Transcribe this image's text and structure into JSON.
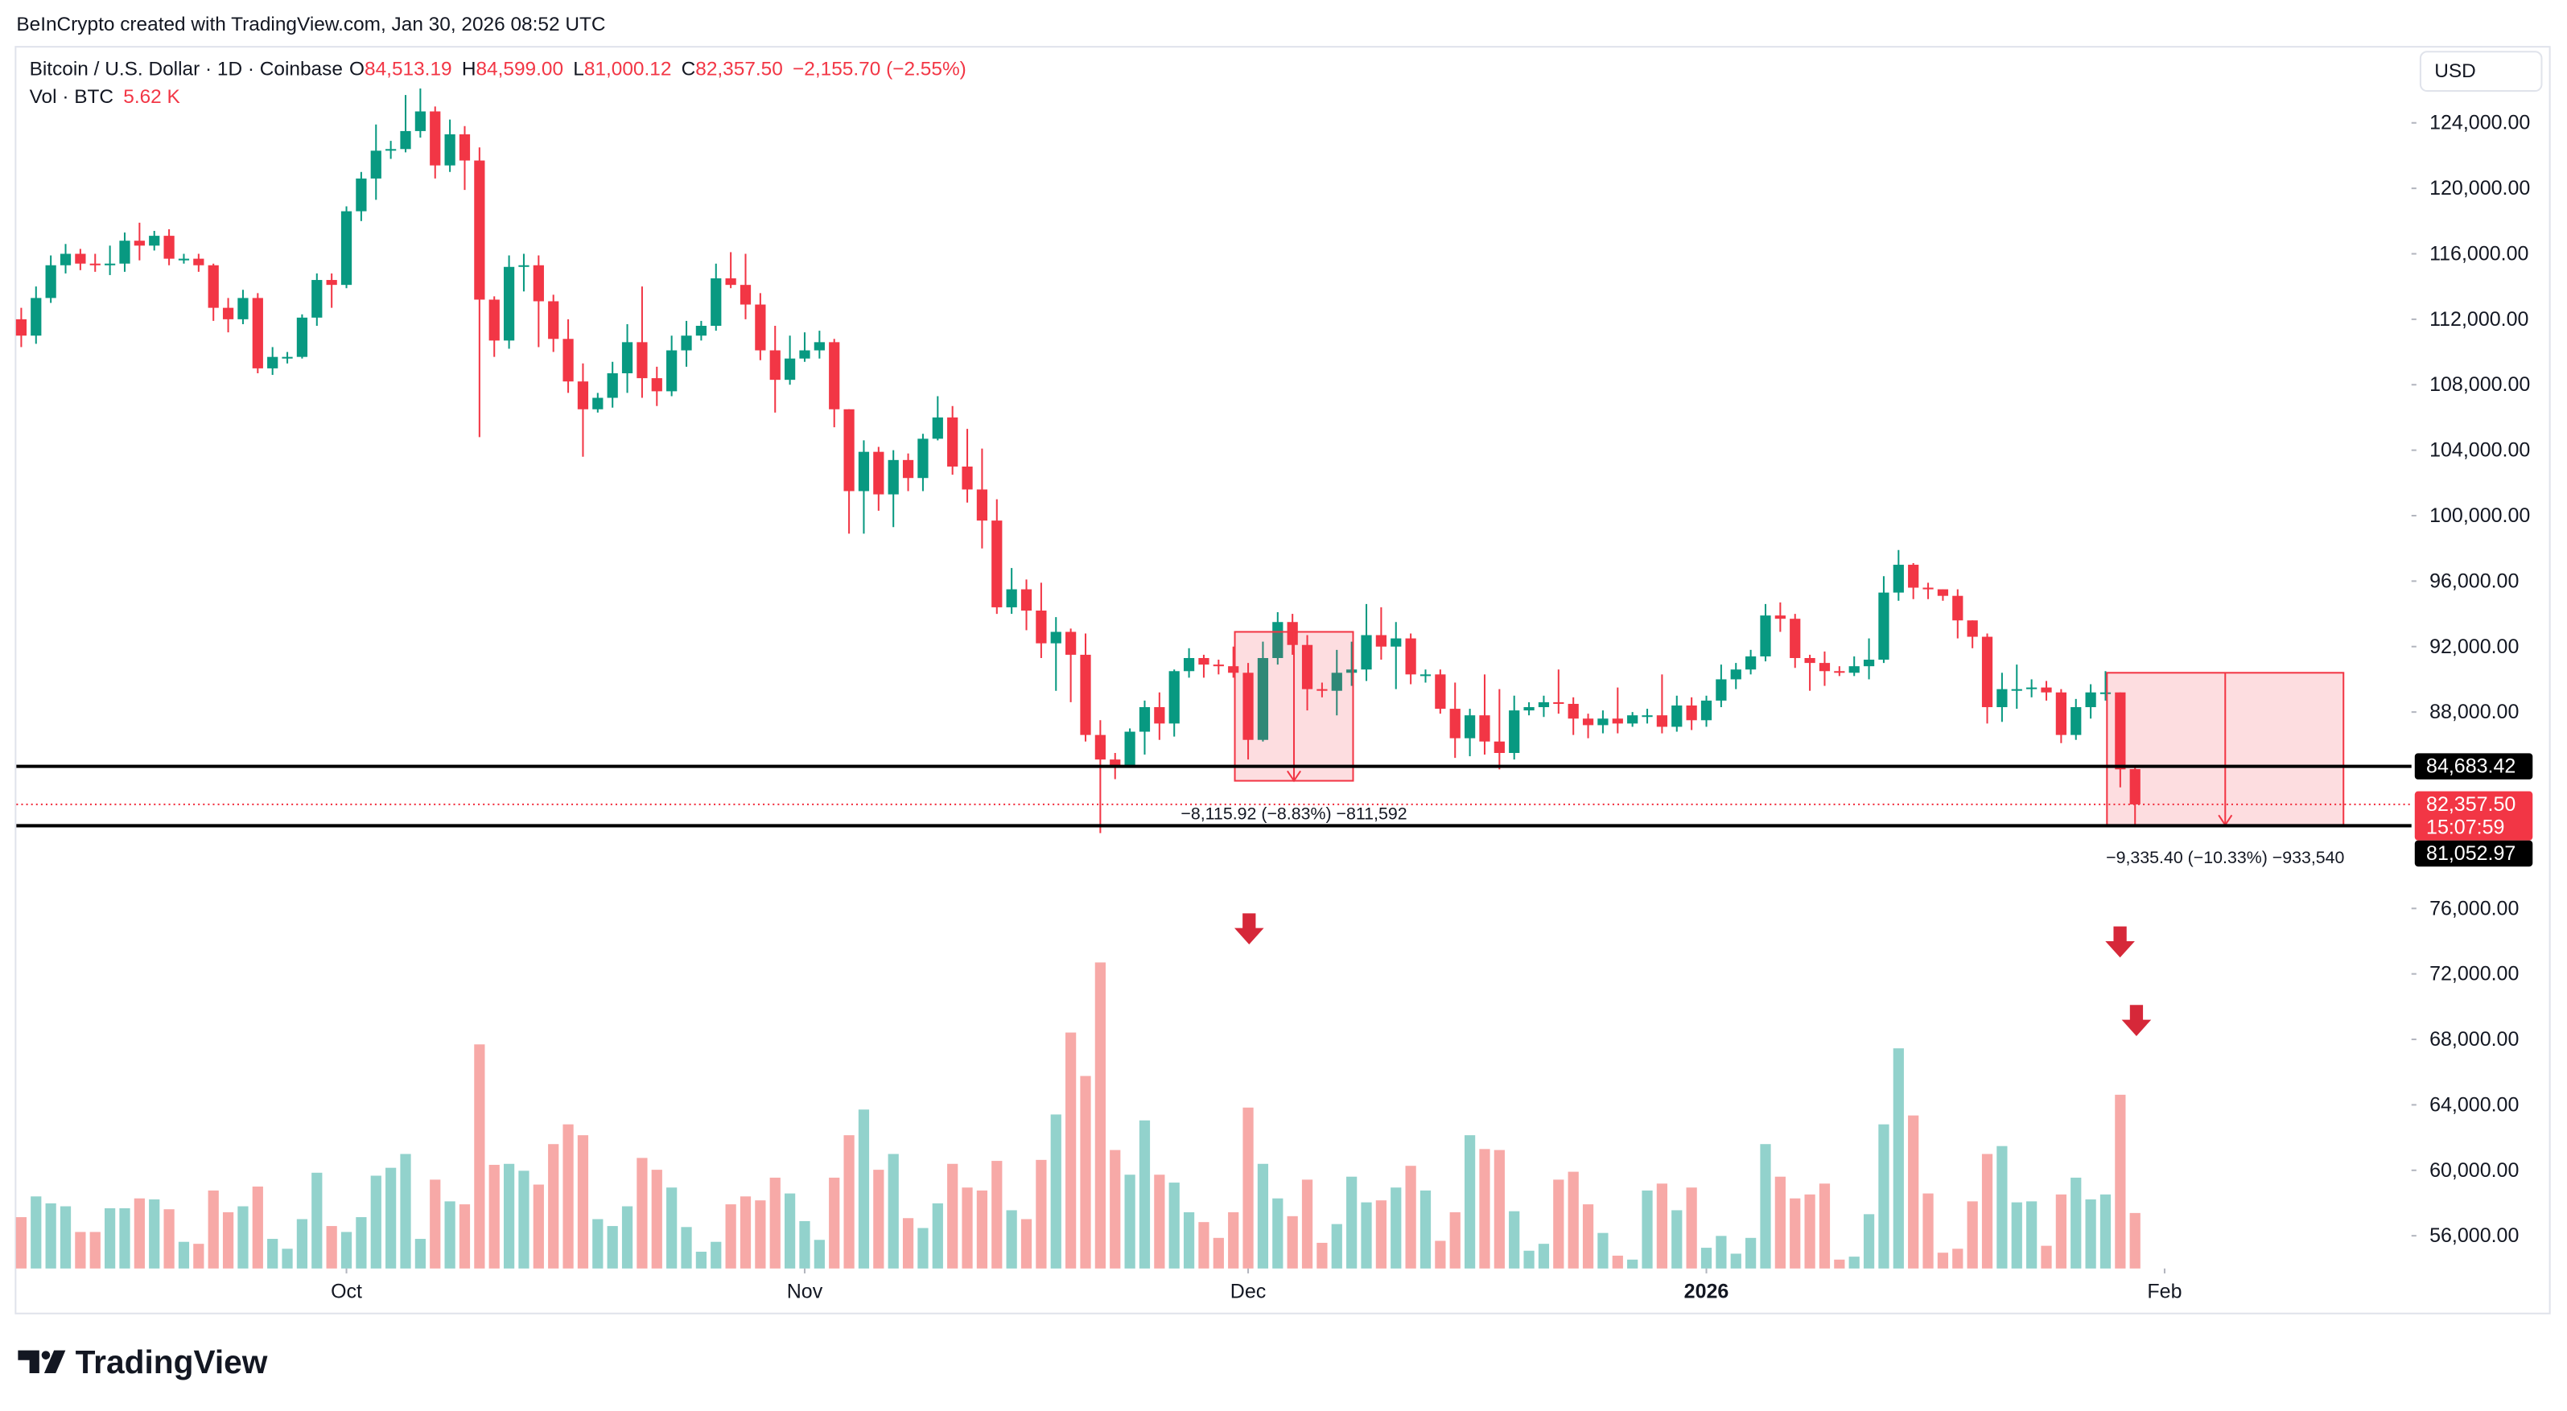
{
  "header": "BeInCrypto created with TradingView.com, Jan 30, 2026 08:52 UTC",
  "footer": "TradingView",
  "currency_button": "USD",
  "chart_data": {
    "type": "candlestick",
    "legend": {
      "symbol": "Bitcoin / U.S. Dollar · 1D · Coinbase",
      "ohlc": [
        {
          "key": "O",
          "value": "84,513.19"
        },
        {
          "key": "H",
          "value": "84,599.00"
        },
        {
          "key": "L",
          "value": "81,000.12"
        },
        {
          "key": "C",
          "value": "82,357.50"
        }
      ],
      "change": "−2,155.70 (−2.55%)",
      "volume_name": "Vol · BTC",
      "volume_value": "5.62 K"
    },
    "up_color": "#089981",
    "down_color": "#f23645",
    "volume_up_color": "#92d2cc",
    "volume_down_color": "#f7a9a7",
    "xlim": [
      -0.33,
      161.7
    ],
    "xticks": [
      {
        "value": 22,
        "label": "Oct"
      },
      {
        "value": 53,
        "label": "Nov"
      },
      {
        "value": 83,
        "label": "Dec"
      },
      {
        "value": 114,
        "label": "2026"
      },
      {
        "value": 145,
        "label": "Feb"
      }
    ],
    "ylim": [
      54000,
      128500
    ],
    "yticks": [
      {
        "value": 56000,
        "label": "56,000.00"
      },
      {
        "value": 60000,
        "label": "60,000.00"
      },
      {
        "value": 64000,
        "label": "64,000.00"
      },
      {
        "value": 68000,
        "label": "68,000.00"
      },
      {
        "value": 72000,
        "label": "72,000.00"
      },
      {
        "value": 76000,
        "label": "76,000.00"
      },
      {
        "value": 88000,
        "label": "88,000.00"
      },
      {
        "value": 92000,
        "label": "92,000.00"
      },
      {
        "value": 96000,
        "label": "96,000.00"
      },
      {
        "value": 100000,
        "label": "100,000.00"
      },
      {
        "value": 104000,
        "label": "104,000.00"
      },
      {
        "value": 108000,
        "label": "108,000.00"
      },
      {
        "value": 112000,
        "label": "112,000.00"
      },
      {
        "value": 116000,
        "label": "116,000.00"
      },
      {
        "value": 120000,
        "label": "120,000.00"
      },
      {
        "value": 124000,
        "label": "124,000.00"
      }
    ],
    "grid": false,
    "open": [
      112000,
      111000,
      113300,
      115300,
      116000,
      115400,
      115300,
      115400,
      116800,
      116500,
      117100,
      115700,
      115700,
      115300,
      112700,
      112000,
      113300,
      109000,
      109700,
      109700,
      112100,
      114400,
      114100,
      118600,
      120600,
      122300,
      122400,
      123500,
      124700,
      121400,
      123300,
      121700,
      113200,
      110700,
      115200,
      115300,
      113100,
      110800,
      108200,
      106500,
      107200,
      108700,
      110600,
      108400,
      107600,
      110100,
      111000,
      111600,
      114500,
      114100,
      112900,
      110100,
      108300,
      109600,
      110100,
      110600,
      106500,
      101500,
      103900,
      101300,
      103400,
      102300,
      104700,
      106000,
      103000,
      101600,
      99700,
      94400,
      95500,
      94200,
      92200,
      92900,
      91500,
      86600,
      85100,
      84700,
      86800,
      88300,
      87300,
      90500,
      91300,
      90900,
      90800,
      90400,
      86300,
      91300,
      93500,
      92100,
      89400,
      89300,
      90400,
      90600,
      92700,
      92000,
      92500,
      90300,
      90300,
      88200,
      86400,
      87800,
      86200,
      85500,
      88100,
      88300,
      88600,
      88500,
      87600,
      87200,
      87600,
      87300,
      87800,
      87800,
      87100,
      88400,
      87500,
      88700,
      90000,
      90600,
      91400,
      93900,
      93700,
      91300,
      91000,
      90500,
      90400,
      90800,
      91200,
      95300,
      97000,
      95600,
      95500,
      95100,
      93600,
      92600,
      88300,
      89400,
      89400,
      89500,
      89200,
      86600,
      88300,
      89200,
      89200,
      84513.19
    ],
    "high": [
      112700,
      114000,
      115900,
      116600,
      116300,
      116000,
      116500,
      117300,
      117900,
      117400,
      117500,
      116000,
      116000,
      115400,
      113300,
      113800,
      113600,
      110300,
      110000,
      112300,
      114800,
      114800,
      118900,
      121000,
      123900,
      122900,
      125700,
      126100,
      125000,
      124200,
      123800,
      122500,
      113400,
      115900,
      116000,
      115900,
      113500,
      112000,
      109300,
      107500,
      109400,
      111700,
      114000,
      109100,
      111000,
      111900,
      111900,
      115400,
      116100,
      116000,
      113600,
      111600,
      111000,
      111200,
      111300,
      110800,
      106500,
      104600,
      104200,
      104000,
      103800,
      105000,
      107300,
      106700,
      105300,
      104100,
      101000,
      96800,
      96100,
      95900,
      93800,
      93100,
      92800,
      87500,
      85500,
      87000,
      88700,
      89200,
      90600,
      91900,
      91500,
      91200,
      92000,
      91000,
      92300,
      94100,
      94000,
      92700,
      89800,
      91800,
      92300,
      94600,
      94400,
      93500,
      92800,
      90600,
      90600,
      89800,
      88200,
      90300,
      89400,
      89000,
      88600,
      89000,
      90600,
      88900,
      87900,
      88100,
      89500,
      88000,
      88200,
      90300,
      89000,
      88900,
      89000,
      90900,
      91000,
      91800,
      94600,
      94700,
      94000,
      91500,
      91700,
      90800,
      91400,
      92500,
      96300,
      97900,
      97100,
      95900,
      95500,
      95500,
      93600,
      92800,
      90400,
      90900,
      90000,
      89900,
      89400,
      88800,
      89700,
      90500,
      89200,
      84599
    ],
    "low": [
      110300,
      110500,
      113000,
      114800,
      115000,
      114900,
      114700,
      114900,
      115600,
      116200,
      115300,
      115400,
      114900,
      111900,
      111200,
      111700,
      108700,
      108600,
      109300,
      109600,
      111600,
      112700,
      113900,
      118000,
      119300,
      121800,
      122200,
      123100,
      120600,
      121000,
      119900,
      104800,
      109700,
      110200,
      113700,
      110300,
      110000,
      107500,
      103600,
      106300,
      106600,
      107500,
      107200,
      106700,
      107300,
      109100,
      110700,
      111300,
      113900,
      112000,
      109500,
      106300,
      108000,
      109400,
      109600,
      105400,
      98900,
      98900,
      100300,
      99300,
      101500,
      101500,
      104600,
      102500,
      100800,
      98000,
      94000,
      94000,
      93000,
      91300,
      89300,
      88600,
      86200,
      80600,
      83900,
      84600,
      85400,
      86300,
      86500,
      90100,
      90100,
      90300,
      90100,
      85100,
      86200,
      90900,
      91500,
      88100,
      88900,
      87800,
      89600,
      89900,
      91200,
      89400,
      89700,
      89800,
      87900,
      85200,
      85300,
      85400,
      84500,
      85100,
      87800,
      87700,
      87900,
      86600,
      86400,
      86700,
      86700,
      87100,
      87300,
      86700,
      86800,
      86900,
      87100,
      88300,
      89400,
      90300,
      91100,
      92900,
      90700,
      89300,
      89600,
      90200,
      90200,
      90000,
      91000,
      94800,
      94900,
      94900,
      94800,
      92500,
      91900,
      87300,
      87400,
      88200,
      88900,
      88700,
      86100,
      86300,
      87600,
      88700,
      83400,
      81000.12
    ],
    "close": [
      111000,
      113300,
      115300,
      116000,
      115400,
      115300,
      115400,
      116800,
      116500,
      117100,
      115700,
      115700,
      115300,
      112700,
      112000,
      113300,
      109000,
      109700,
      109700,
      112100,
      114400,
      114100,
      118600,
      120600,
      122300,
      122400,
      123500,
      124700,
      121400,
      123300,
      121700,
      113200,
      110700,
      115200,
      115300,
      113100,
      110800,
      108200,
      106500,
      107200,
      108700,
      110600,
      108400,
      107600,
      110100,
      111000,
      111600,
      114500,
      114100,
      112900,
      110100,
      108300,
      109600,
      110100,
      110600,
      106500,
      101500,
      103900,
      101300,
      103400,
      102300,
      104700,
      106000,
      103000,
      101600,
      99700,
      94400,
      95500,
      94200,
      92200,
      92900,
      91500,
      86600,
      85100,
      84700,
      86800,
      88300,
      87300,
      90500,
      91300,
      90900,
      90800,
      90400,
      86300,
      91300,
      93500,
      92100,
      89400,
      89300,
      90400,
      90600,
      92700,
      92000,
      92500,
      90300,
      90300,
      88200,
      86400,
      87800,
      86200,
      85500,
      88100,
      88300,
      88600,
      88500,
      87600,
      87200,
      87600,
      87300,
      87800,
      87800,
      87100,
      88400,
      87500,
      88700,
      90000,
      90600,
      91400,
      93900,
      93700,
      91300,
      91000,
      90500,
      90400,
      90800,
      91200,
      95300,
      97000,
      95600,
      95500,
      95100,
      93600,
      92600,
      88300,
      89400,
      89400,
      89500,
      89200,
      86600,
      88300,
      89200,
      89200,
      84500,
      82357.5
    ],
    "volume": [
      5200,
      7300,
      6600,
      6300,
      3700,
      3700,
      6100,
      6100,
      7100,
      7000,
      6000,
      2700,
      2500,
      7900,
      5700,
      6300,
      8300,
      3000,
      2000,
      5000,
      9700,
      4300,
      3700,
      5200,
      9400,
      10200,
      11600,
      3000,
      9000,
      6800,
      6500,
      22700,
      10500,
      10600,
      9900,
      8500,
      12600,
      14600,
      13500,
      5000,
      4300,
      6300,
      11200,
      10000,
      8200,
      4200,
      1700,
      2700,
      6500,
      7300,
      6900,
      9200,
      7600,
      4800,
      2900,
      9200,
      13500,
      16100,
      10000,
      11600,
      5100,
      4100,
      6600,
      10600,
      8200,
      7900,
      10900,
      5900,
      5000,
      11000,
      15600,
      23900,
      19500,
      31000,
      12000,
      9500,
      15000,
      9500,
      8700,
      5700,
      4700,
      3100,
      5700,
      16300,
      10600,
      7100,
      5300,
      9000,
      2600,
      4500,
      9300,
      6700,
      6900,
      8200,
      10400,
      7900,
      2800,
      5700,
      13500,
      12100,
      12000,
      5800,
      1800,
      2500,
      9000,
      9800,
      6500,
      3600,
      1300,
      900,
      7900,
      8600,
      5900,
      8200,
      2100,
      3300,
      1500,
      3100,
      12600,
      9300,
      7100,
      7500,
      8600,
      900,
      1200,
      5500,
      14600,
      22300,
      15500,
      7600,
      1600,
      2000,
      6800,
      11600,
      12400,
      6700,
      6800,
      2300,
      7500,
      9200,
      7000,
      7500,
      17600,
      5620
    ],
    "levels": [
      {
        "value": 84683.42,
        "label": "84,683.42"
      },
      {
        "value": 81052.97,
        "label": "81,052.97"
      }
    ],
    "last_price": {
      "value": 82357.5,
      "label": "82,357.50",
      "countdown": "15:07:59"
    },
    "measures": [
      {
        "from": 82.1,
        "to": 90.1,
        "top": 92900,
        "bottom": 83800,
        "label": "−8,115.92 (−8.83%) −811,592"
      },
      {
        "from": 141.1,
        "to": 157.1,
        "top": 90400,
        "bottom": 81100,
        "label": "−9,335.40 (−10.33%) −933,540"
      }
    ]
  }
}
